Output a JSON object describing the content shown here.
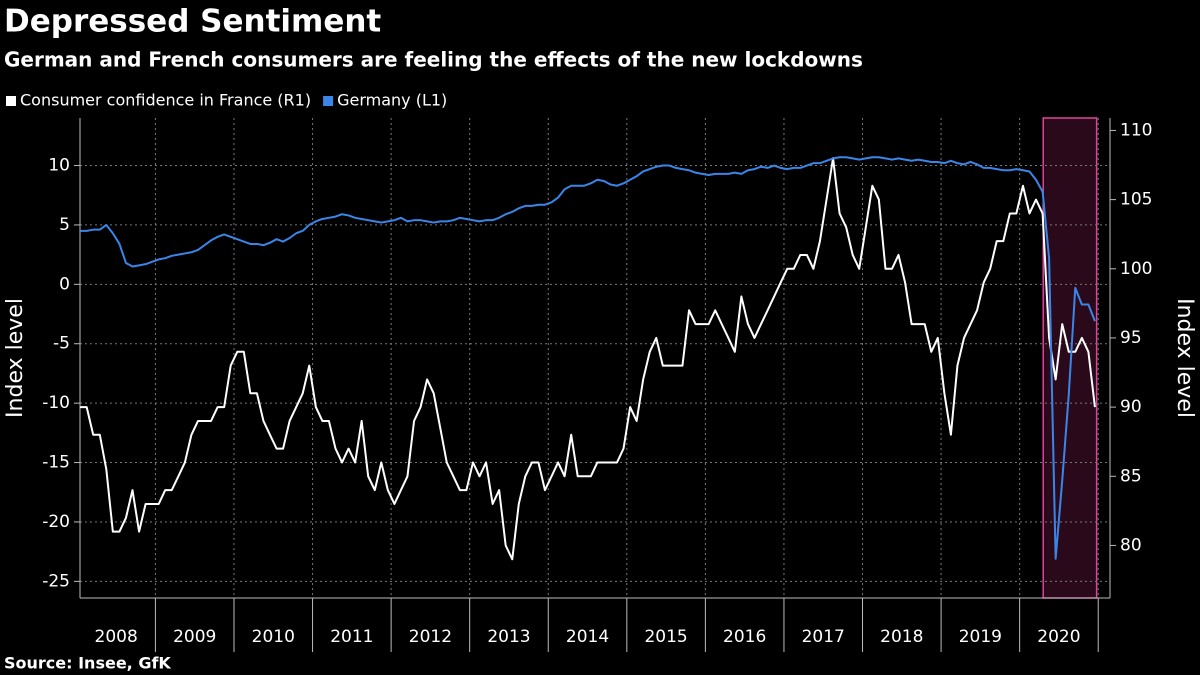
{
  "chart_data": {
    "type": "line",
    "title": "Depressed Sentiment",
    "subtitle": "German and French consumers are feeling the effects of the new lockdowns",
    "source": "Source: Insee, GfK",
    "ylabel": "Index level",
    "y2label": "Index level",
    "x": [
      2008.042,
      2008.125,
      2008.208,
      2008.292,
      2008.375,
      2008.458,
      2008.542,
      2008.625,
      2008.708,
      2008.792,
      2008.875,
      2008.958,
      2009.042,
      2009.125,
      2009.208,
      2009.292,
      2009.375,
      2009.458,
      2009.542,
      2009.625,
      2009.708,
      2009.792,
      2009.875,
      2009.958,
      2010.042,
      2010.125,
      2010.208,
      2010.292,
      2010.375,
      2010.458,
      2010.542,
      2010.625,
      2010.708,
      2010.792,
      2010.875,
      2010.958,
      2011.042,
      2011.125,
      2011.208,
      2011.292,
      2011.375,
      2011.458,
      2011.542,
      2011.625,
      2011.708,
      2011.792,
      2011.875,
      2011.958,
      2012.042,
      2012.125,
      2012.208,
      2012.292,
      2012.375,
      2012.458,
      2012.542,
      2012.625,
      2012.708,
      2012.792,
      2012.875,
      2012.958,
      2013.042,
      2013.125,
      2013.208,
      2013.292,
      2013.375,
      2013.458,
      2013.542,
      2013.625,
      2013.708,
      2013.792,
      2013.875,
      2013.958,
      2014.042,
      2014.125,
      2014.208,
      2014.292,
      2014.375,
      2014.458,
      2014.542,
      2014.625,
      2014.708,
      2014.792,
      2014.875,
      2014.958,
      2015.042,
      2015.125,
      2015.208,
      2015.292,
      2015.375,
      2015.458,
      2015.542,
      2015.625,
      2015.708,
      2015.792,
      2015.875,
      2015.958,
      2016.042,
      2016.125,
      2016.208,
      2016.292,
      2016.375,
      2016.458,
      2016.542,
      2016.625,
      2016.708,
      2016.792,
      2016.875,
      2016.958,
      2017.042,
      2017.125,
      2017.208,
      2017.292,
      2017.375,
      2017.458,
      2017.542,
      2017.625,
      2017.708,
      2017.792,
      2017.875,
      2017.958,
      2018.042,
      2018.125,
      2018.208,
      2018.292,
      2018.375,
      2018.458,
      2018.542,
      2018.625,
      2018.708,
      2018.792,
      2018.875,
      2018.958,
      2019.042,
      2019.125,
      2019.208,
      2019.292,
      2019.375,
      2019.458,
      2019.542,
      2019.625,
      2019.708,
      2019.792,
      2019.875,
      2019.958,
      2020.042,
      2020.125,
      2020.208,
      2020.292,
      2020.375,
      2020.458,
      2020.542,
      2020.625,
      2020.708,
      2020.792,
      2020.875,
      2020.958
    ],
    "series": [
      {
        "name": "Consumer confidence in France (R1)",
        "color": "#ffffff",
        "axis": "y2",
        "values": [
          90,
          90,
          88,
          88,
          85.5,
          81,
          81,
          82,
          84,
          81,
          83,
          83,
          83,
          84,
          84,
          85,
          86,
          88,
          89,
          89,
          89,
          90,
          90,
          93,
          94,
          94,
          91,
          91,
          89,
          88,
          87,
          87,
          89,
          90,
          91,
          93,
          90,
          89,
          89,
          87,
          86,
          87,
          86,
          89,
          85,
          84,
          86,
          84,
          83,
          84,
          85,
          89,
          90,
          92,
          91,
          88.5,
          86,
          85,
          84,
          84,
          86,
          85,
          86,
          83,
          84,
          80,
          79,
          83,
          85,
          86,
          86,
          84,
          85,
          86,
          85,
          88,
          85,
          85,
          85,
          86,
          86,
          86,
          86,
          87,
          90,
          89,
          92,
          94,
          95,
          93,
          93,
          93,
          93,
          97,
          96,
          96,
          96,
          97,
          96,
          95,
          94,
          98,
          96,
          95,
          96,
          97,
          98,
          99,
          100,
          100,
          101,
          101,
          100,
          102,
          105,
          108,
          104,
          103,
          101,
          100,
          103,
          106,
          105,
          100,
          100,
          101,
          99,
          96,
          96,
          96,
          94,
          95,
          91,
          88,
          93,
          95,
          96,
          97,
          99,
          100,
          102,
          102,
          104,
          104,
          106,
          104,
          105,
          104,
          95,
          92,
          96,
          94,
          94,
          95,
          94,
          90
        ]
      },
      {
        "name": "Germany (L1)",
        "color": "#3a86e8",
        "axis": "y",
        "values": [
          4.5,
          4.5,
          4.6,
          4.6,
          5.0,
          4.3,
          3.4,
          1.8,
          1.5,
          1.6,
          1.7,
          1.9,
          2.1,
          2.2,
          2.4,
          2.5,
          2.6,
          2.7,
          2.9,
          3.3,
          3.7,
          4.0,
          4.2,
          4.0,
          3.8,
          3.6,
          3.4,
          3.4,
          3.3,
          3.5,
          3.8,
          3.6,
          3.9,
          4.3,
          4.5,
          5.0,
          5.3,
          5.5,
          5.6,
          5.7,
          5.9,
          5.8,
          5.6,
          5.5,
          5.4,
          5.3,
          5.2,
          5.3,
          5.4,
          5.6,
          5.3,
          5.4,
          5.4,
          5.3,
          5.2,
          5.3,
          5.3,
          5.4,
          5.6,
          5.5,
          5.4,
          5.3,
          5.4,
          5.4,
          5.6,
          5.9,
          6.1,
          6.4,
          6.6,
          6.6,
          6.7,
          6.7,
          6.9,
          7.3,
          8.0,
          8.3,
          8.3,
          8.3,
          8.5,
          8.8,
          8.7,
          8.4,
          8.3,
          8.5,
          8.8,
          9.1,
          9.5,
          9.7,
          9.9,
          10.0,
          10.0,
          9.8,
          9.7,
          9.6,
          9.4,
          9.3,
          9.2,
          9.3,
          9.3,
          9.3,
          9.4,
          9.3,
          9.6,
          9.7,
          9.9,
          9.8,
          10.0,
          9.8,
          9.7,
          9.8,
          9.8,
          10.0,
          10.2,
          10.2,
          10.4,
          10.6,
          10.7,
          10.7,
          10.6,
          10.5,
          10.6,
          10.7,
          10.7,
          10.6,
          10.5,
          10.6,
          10.5,
          10.4,
          10.5,
          10.4,
          10.3,
          10.3,
          10.2,
          10.4,
          10.2,
          10.1,
          10.3,
          10.1,
          9.8,
          9.8,
          9.7,
          9.6,
          9.6,
          9.7,
          9.6,
          9.5,
          8.8,
          7.8,
          2.2,
          -23.1,
          -16.5,
          -9.3,
          -0.3,
          -1.7,
          -1.7,
          -3.1
        ]
      }
    ],
    "xlim": [
      2008.04,
      2021.15
    ],
    "xticks": [
      {
        "value": 2008.5,
        "label": "2008"
      },
      {
        "value": 2009.5,
        "label": "2009"
      },
      {
        "value": 2010.5,
        "label": "2010"
      },
      {
        "value": 2011.5,
        "label": "2011"
      },
      {
        "value": 2012.5,
        "label": "2012"
      },
      {
        "value": 2013.5,
        "label": "2013"
      },
      {
        "value": 2014.5,
        "label": "2014"
      },
      {
        "value": 2015.5,
        "label": "2015"
      },
      {
        "value": 2016.5,
        "label": "2016"
      },
      {
        "value": 2017.5,
        "label": "2017"
      },
      {
        "value": 2018.5,
        "label": "2018"
      },
      {
        "value": 2019.5,
        "label": "2019"
      },
      {
        "value": 2020.5,
        "label": "2020"
      }
    ],
    "xgrid": [
      2009,
      2010,
      2011,
      2012,
      2013,
      2014,
      2015,
      2016,
      2017,
      2018,
      2019,
      2020,
      2021
    ],
    "ylim": [
      -26.4,
      14
    ],
    "yticks": [
      -25,
      -20,
      -15,
      -10,
      -5,
      0,
      5,
      10
    ],
    "y2lim": [
      76.2,
      110.9
    ],
    "y2ticks": [
      80,
      85,
      90,
      95,
      100,
      105,
      110
    ],
    "grid": true,
    "legend": "top-left",
    "shaded_region": {
      "x": [
        2020.3,
        2020.98
      ],
      "color": "#e0449c",
      "fill": "#2a0a1a"
    }
  }
}
